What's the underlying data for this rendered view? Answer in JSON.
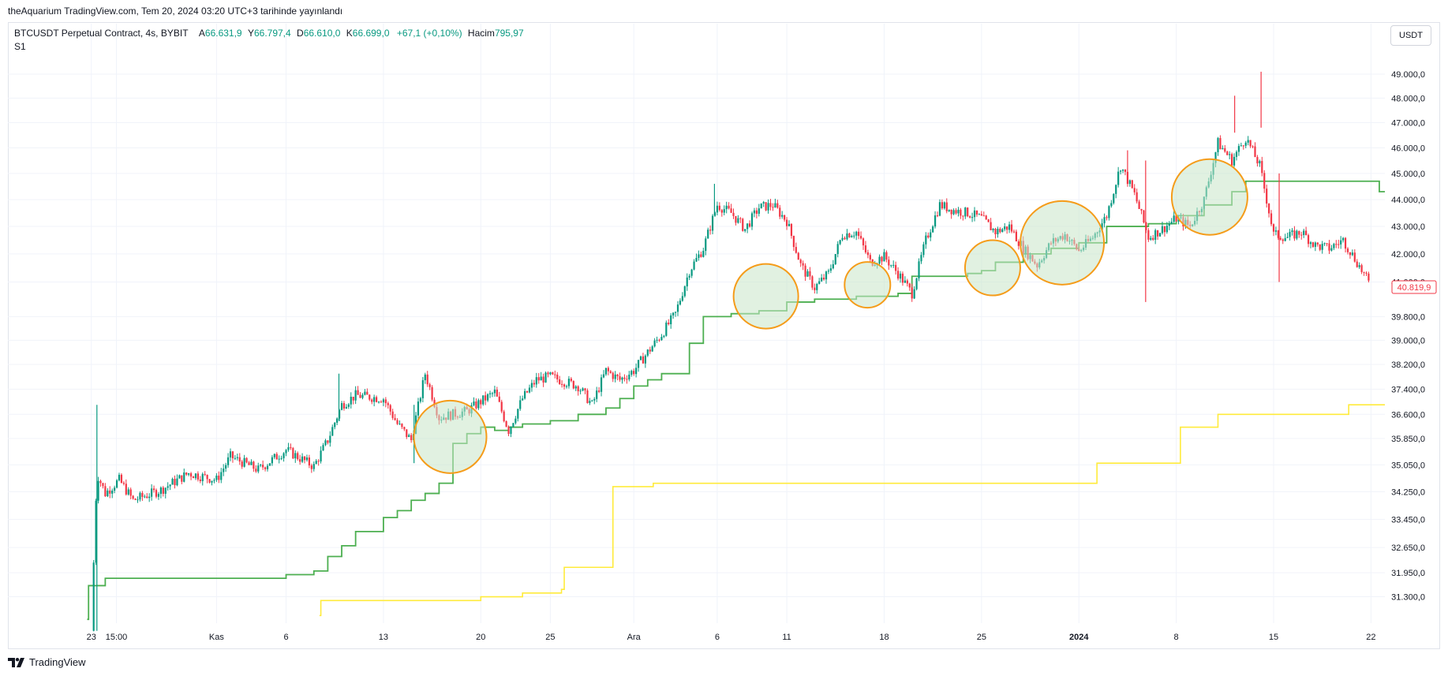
{
  "header": {
    "publish_line": "theAquarium TradingView.com, Tem 20, 2024 03:20 UTC+3 tarihinde yayınlandı"
  },
  "legend": {
    "symbol": "BTCUSDT Perpetual Contract, 4s, BYBIT",
    "open_label": "A",
    "open": "66.631,9",
    "high_label": "Y",
    "high": "66.797,4",
    "low_label": "D",
    "low": "66.610,0",
    "close_label": "K",
    "close": "66.699,0",
    "change": "+67,1 (+0,10%)",
    "volume_label": "Hacim",
    "volume": "795,97",
    "study": "S1"
  },
  "currency": "USDT",
  "brand": "TradingView",
  "colors": {
    "up": "#089981",
    "down": "#f23645",
    "green_line": "#4caf50",
    "yellow_line": "#ffeb3b",
    "highlight_circle": "#f59c1a",
    "highlight_fill": "#c8e6c9",
    "last_price_box": "#f23645"
  },
  "chart_data": {
    "type": "candlestick",
    "x_tick_labels": [
      "23",
      "15:00",
      "Kas",
      "6",
      "13",
      "20",
      "25",
      "Ara",
      "6",
      "11",
      "18",
      "25",
      "2024",
      "8",
      "15",
      "22"
    ],
    "x_tick_days": [
      0,
      1.8,
      9,
      14,
      21,
      28,
      33,
      39,
      45,
      50,
      57,
      64,
      71,
      78,
      85,
      92
    ],
    "y_tick_labels": [
      "49.000,0",
      "48.000,0",
      "47.000,0",
      "46.000,0",
      "45.000,0",
      "44.000,0",
      "43.000,0",
      "42.000,0",
      "41.000,0",
      "39.800,0",
      "39.000,0",
      "38.200,0",
      "37.400,0",
      "36.600,0",
      "35.850,0",
      "35.050,0",
      "34.250,0",
      "33.450,0",
      "32.650,0",
      "31.950,0",
      "31.300,0"
    ],
    "y_tick_values": [
      49000,
      48000,
      47000,
      46000,
      45000,
      44000,
      43000,
      42000,
      41000,
      39800,
      39000,
      38200,
      37400,
      36600,
      35850,
      35050,
      34250,
      33450,
      32650,
      31950,
      31300
    ],
    "y_scale": "log",
    "ylim": [
      30600,
      49800
    ],
    "xlim": [
      -6,
      93
    ],
    "last_price": "40.819,9",
    "last_price_value": 40819.9,
    "price_path": [
      [
        0,
        30400
      ],
      [
        0.4,
        34800
      ],
      [
        1,
        34200
      ],
      [
        2,
        34600
      ],
      [
        3,
        34000
      ],
      [
        5,
        34300
      ],
      [
        7,
        34800
      ],
      [
        9,
        34600
      ],
      [
        10,
        35300
      ],
      [
        12,
        34900
      ],
      [
        14,
        35500
      ],
      [
        16,
        35000
      ],
      [
        17,
        35800
      ],
      [
        18,
        36900
      ],
      [
        19,
        37200
      ],
      [
        21,
        37100
      ],
      [
        22,
        36300
      ],
      [
        23,
        35800
      ],
      [
        24,
        37900
      ],
      [
        25,
        36500
      ],
      [
        27,
        36700
      ],
      [
        28,
        37000
      ],
      [
        29,
        37300
      ],
      [
        30,
        36100
      ],
      [
        31,
        37100
      ],
      [
        32,
        37700
      ],
      [
        33,
        37800
      ],
      [
        35,
        37500
      ],
      [
        36,
        36900
      ],
      [
        37,
        38000
      ],
      [
        38,
        37700
      ],
      [
        39,
        38000
      ],
      [
        40,
        38600
      ],
      [
        41,
        39200
      ],
      [
        42,
        39900
      ],
      [
        43,
        41400
      ],
      [
        44,
        42200
      ],
      [
        45,
        43800
      ],
      [
        46,
        43500
      ],
      [
        47,
        42900
      ],
      [
        48,
        43700
      ],
      [
        49,
        43800
      ],
      [
        50,
        43200
      ],
      [
        51,
        41600
      ],
      [
        52,
        40800
      ],
      [
        53,
        41300
      ],
      [
        54,
        42700
      ],
      [
        55,
        42800
      ],
      [
        56,
        41700
      ],
      [
        57,
        41900
      ],
      [
        58,
        41300
      ],
      [
        59,
        40600
      ],
      [
        60,
        42500
      ],
      [
        61,
        43800
      ],
      [
        62,
        43600
      ],
      [
        63,
        43500
      ],
      [
        64,
        43300
      ],
      [
        65,
        42800
      ],
      [
        66,
        43000
      ],
      [
        67,
        42200
      ],
      [
        68,
        41600
      ],
      [
        69,
        42400
      ],
      [
        70,
        42700
      ],
      [
        71,
        42100
      ],
      [
        72,
        42600
      ],
      [
        73,
        43400
      ],
      [
        74,
        45300
      ],
      [
        75,
        44200
      ],
      [
        76,
        42600
      ],
      [
        77,
        42900
      ],
      [
        78,
        43300
      ],
      [
        79,
        43000
      ],
      [
        80,
        44000
      ],
      [
        81,
        46200
      ],
      [
        82,
        45500
      ],
      [
        83,
        46400
      ],
      [
        84,
        45300
      ],
      [
        85,
        42700
      ],
      [
        86,
        42600
      ],
      [
        87,
        42800
      ],
      [
        88,
        42300
      ],
      [
        89,
        42200
      ],
      [
        90,
        42500
      ],
      [
        91,
        41700
      ],
      [
        92,
        40819.9
      ]
    ],
    "wicks": [
      {
        "day": 0.4,
        "high": 36900,
        "low": 30400
      },
      {
        "day": 17.8,
        "high": 37900,
        "low": 36400
      },
      {
        "day": 23.2,
        "high": 36900,
        "low": 35100
      },
      {
        "day": 44.8,
        "high": 44600,
        "low": 43400
      },
      {
        "day": 74.5,
        "high": 45900,
        "low": 44800
      },
      {
        "day": 75.8,
        "high": 45500,
        "low": 40300
      },
      {
        "day": 82.2,
        "high": 48100,
        "low": 46600
      },
      {
        "day": 84.1,
        "high": 49100,
        "low": 46800
      },
      {
        "day": 85.4,
        "high": 45000,
        "low": 41000
      }
    ],
    "green_line": [
      [
        -0.3,
        30700
      ],
      [
        -0.2,
        31600
      ],
      [
        0.5,
        31600
      ],
      [
        1,
        31800
      ],
      [
        13,
        31800
      ],
      [
        14,
        31900
      ],
      [
        16,
        32000
      ],
      [
        17,
        32400
      ],
      [
        18,
        32700
      ],
      [
        19,
        33100
      ],
      [
        21,
        33500
      ],
      [
        22,
        33700
      ],
      [
        23,
        34000
      ],
      [
        24,
        34200
      ],
      [
        25,
        34500
      ],
      [
        26,
        35700
      ],
      [
        27,
        36000
      ],
      [
        28,
        36200
      ],
      [
        29,
        36100
      ],
      [
        30,
        36200
      ],
      [
        31,
        36300
      ],
      [
        33,
        36400
      ],
      [
        35,
        36600
      ],
      [
        37,
        36800
      ],
      [
        38,
        37100
      ],
      [
        39,
        37500
      ],
      [
        40,
        37700
      ],
      [
        41,
        37900
      ],
      [
        43,
        38900
      ],
      [
        44,
        39800
      ],
      [
        46,
        39900
      ],
      [
        48,
        40000
      ],
      [
        50,
        40300
      ],
      [
        52,
        40400
      ],
      [
        55,
        40500
      ],
      [
        58,
        40600
      ],
      [
        59,
        41200
      ],
      [
        63,
        41300
      ],
      [
        64,
        41400
      ],
      [
        65,
        41700
      ],
      [
        67,
        42000
      ],
      [
        69,
        42200
      ],
      [
        71,
        42400
      ],
      [
        73,
        43000
      ],
      [
        76,
        43100
      ],
      [
        78,
        43400
      ],
      [
        80,
        43800
      ],
      [
        82,
        44300
      ],
      [
        83,
        44700
      ],
      [
        92.4,
        44700
      ],
      [
        92.6,
        44300
      ],
      [
        93,
        44300
      ]
    ],
    "yellow_line": [
      [
        16.4,
        30800
      ],
      [
        16.5,
        31200
      ],
      [
        27,
        31200
      ],
      [
        28,
        31300
      ],
      [
        30,
        31300
      ],
      [
        31,
        31400
      ],
      [
        33,
        31400
      ],
      [
        33.8,
        31500
      ],
      [
        34,
        32100
      ],
      [
        37,
        32100
      ],
      [
        37.5,
        34400
      ],
      [
        40,
        34400
      ],
      [
        40.4,
        34500
      ],
      [
        72,
        34500
      ],
      [
        72.3,
        35100
      ],
      [
        78,
        35100
      ],
      [
        78.3,
        36200
      ],
      [
        80.5,
        36200
      ],
      [
        81,
        36600
      ],
      [
        90,
        36600
      ],
      [
        90.4,
        36900
      ],
      [
        93,
        36900
      ]
    ],
    "highlight_circles": [
      {
        "day": 25.8,
        "price": 35900
      },
      {
        "day": 48.5,
        "price": 40500
      },
      {
        "day": 55.8,
        "price": 40900
      },
      {
        "day": 64.8,
        "price": 41500
      },
      {
        "day": 69.8,
        "price": 42400
      },
      {
        "day": 80.4,
        "price": 44100
      }
    ]
  }
}
